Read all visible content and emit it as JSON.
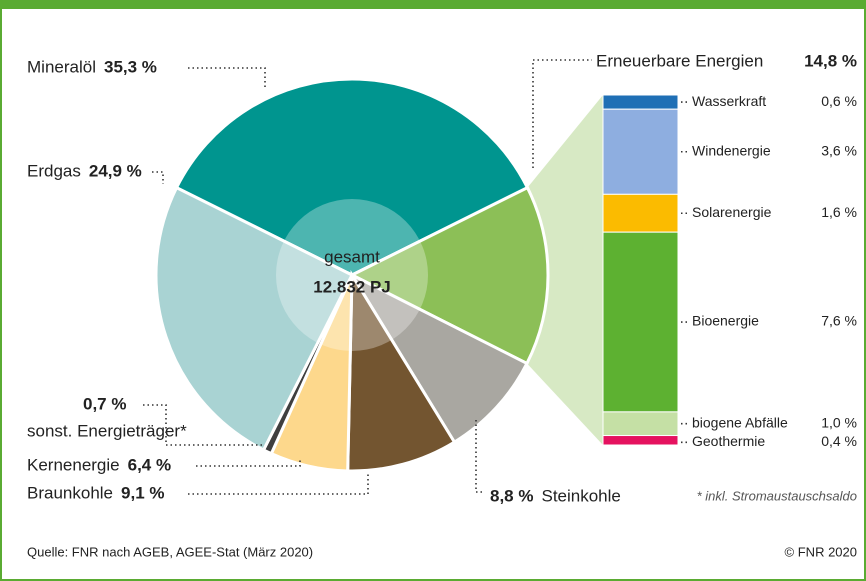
{
  "chart_data": [
    {
      "type": "pie",
      "center_label": "gesamt",
      "center_value": "12.832 PJ",
      "categories": [
        "Mineralöl",
        "Erneuerbare Energien",
        "Steinkohle",
        "Braunkohle",
        "Kernenergie",
        "sonst. Energieträger*",
        "Erdgas"
      ],
      "values": [
        35.3,
        14.8,
        8.8,
        9.1,
        6.4,
        0.7,
        24.9
      ],
      "value_labels": [
        "35,3 %",
        "14,8 %",
        "8,8 %",
        "9,1 %",
        "6,4 %",
        "0,7 %",
        "24,9 %"
      ],
      "colors": [
        "#00958f",
        "#8cbf57",
        "#a9a7a1",
        "#735530",
        "#fdd88c",
        "#3f3f3f",
        "#a9d3d3"
      ]
    },
    {
      "type": "stacked_bar",
      "categories": [
        "Wasserkraft",
        "Windenergie",
        "Solarenergie",
        "Bioenergie",
        "biogene Abfälle",
        "Geothermie"
      ],
      "values": [
        0.6,
        3.6,
        1.6,
        7.6,
        1.0,
        0.4
      ],
      "value_labels": [
        "0,6 %",
        "3,6 %",
        "1,6 %",
        "7,6 %",
        "1,0 %",
        "0,4 %"
      ],
      "colors": [
        "#1f6fb5",
        "#8eaee0",
        "#fbbb00",
        "#5db131",
        "#c5e0a5",
        "#e5125f"
      ]
    }
  ],
  "footnote": "* inkl. Stromaustauschsaldo",
  "source": "Quelle: FNR nach AGEB, AGEE-Stat (März 2020)",
  "copyright": "© FNR 2020"
}
